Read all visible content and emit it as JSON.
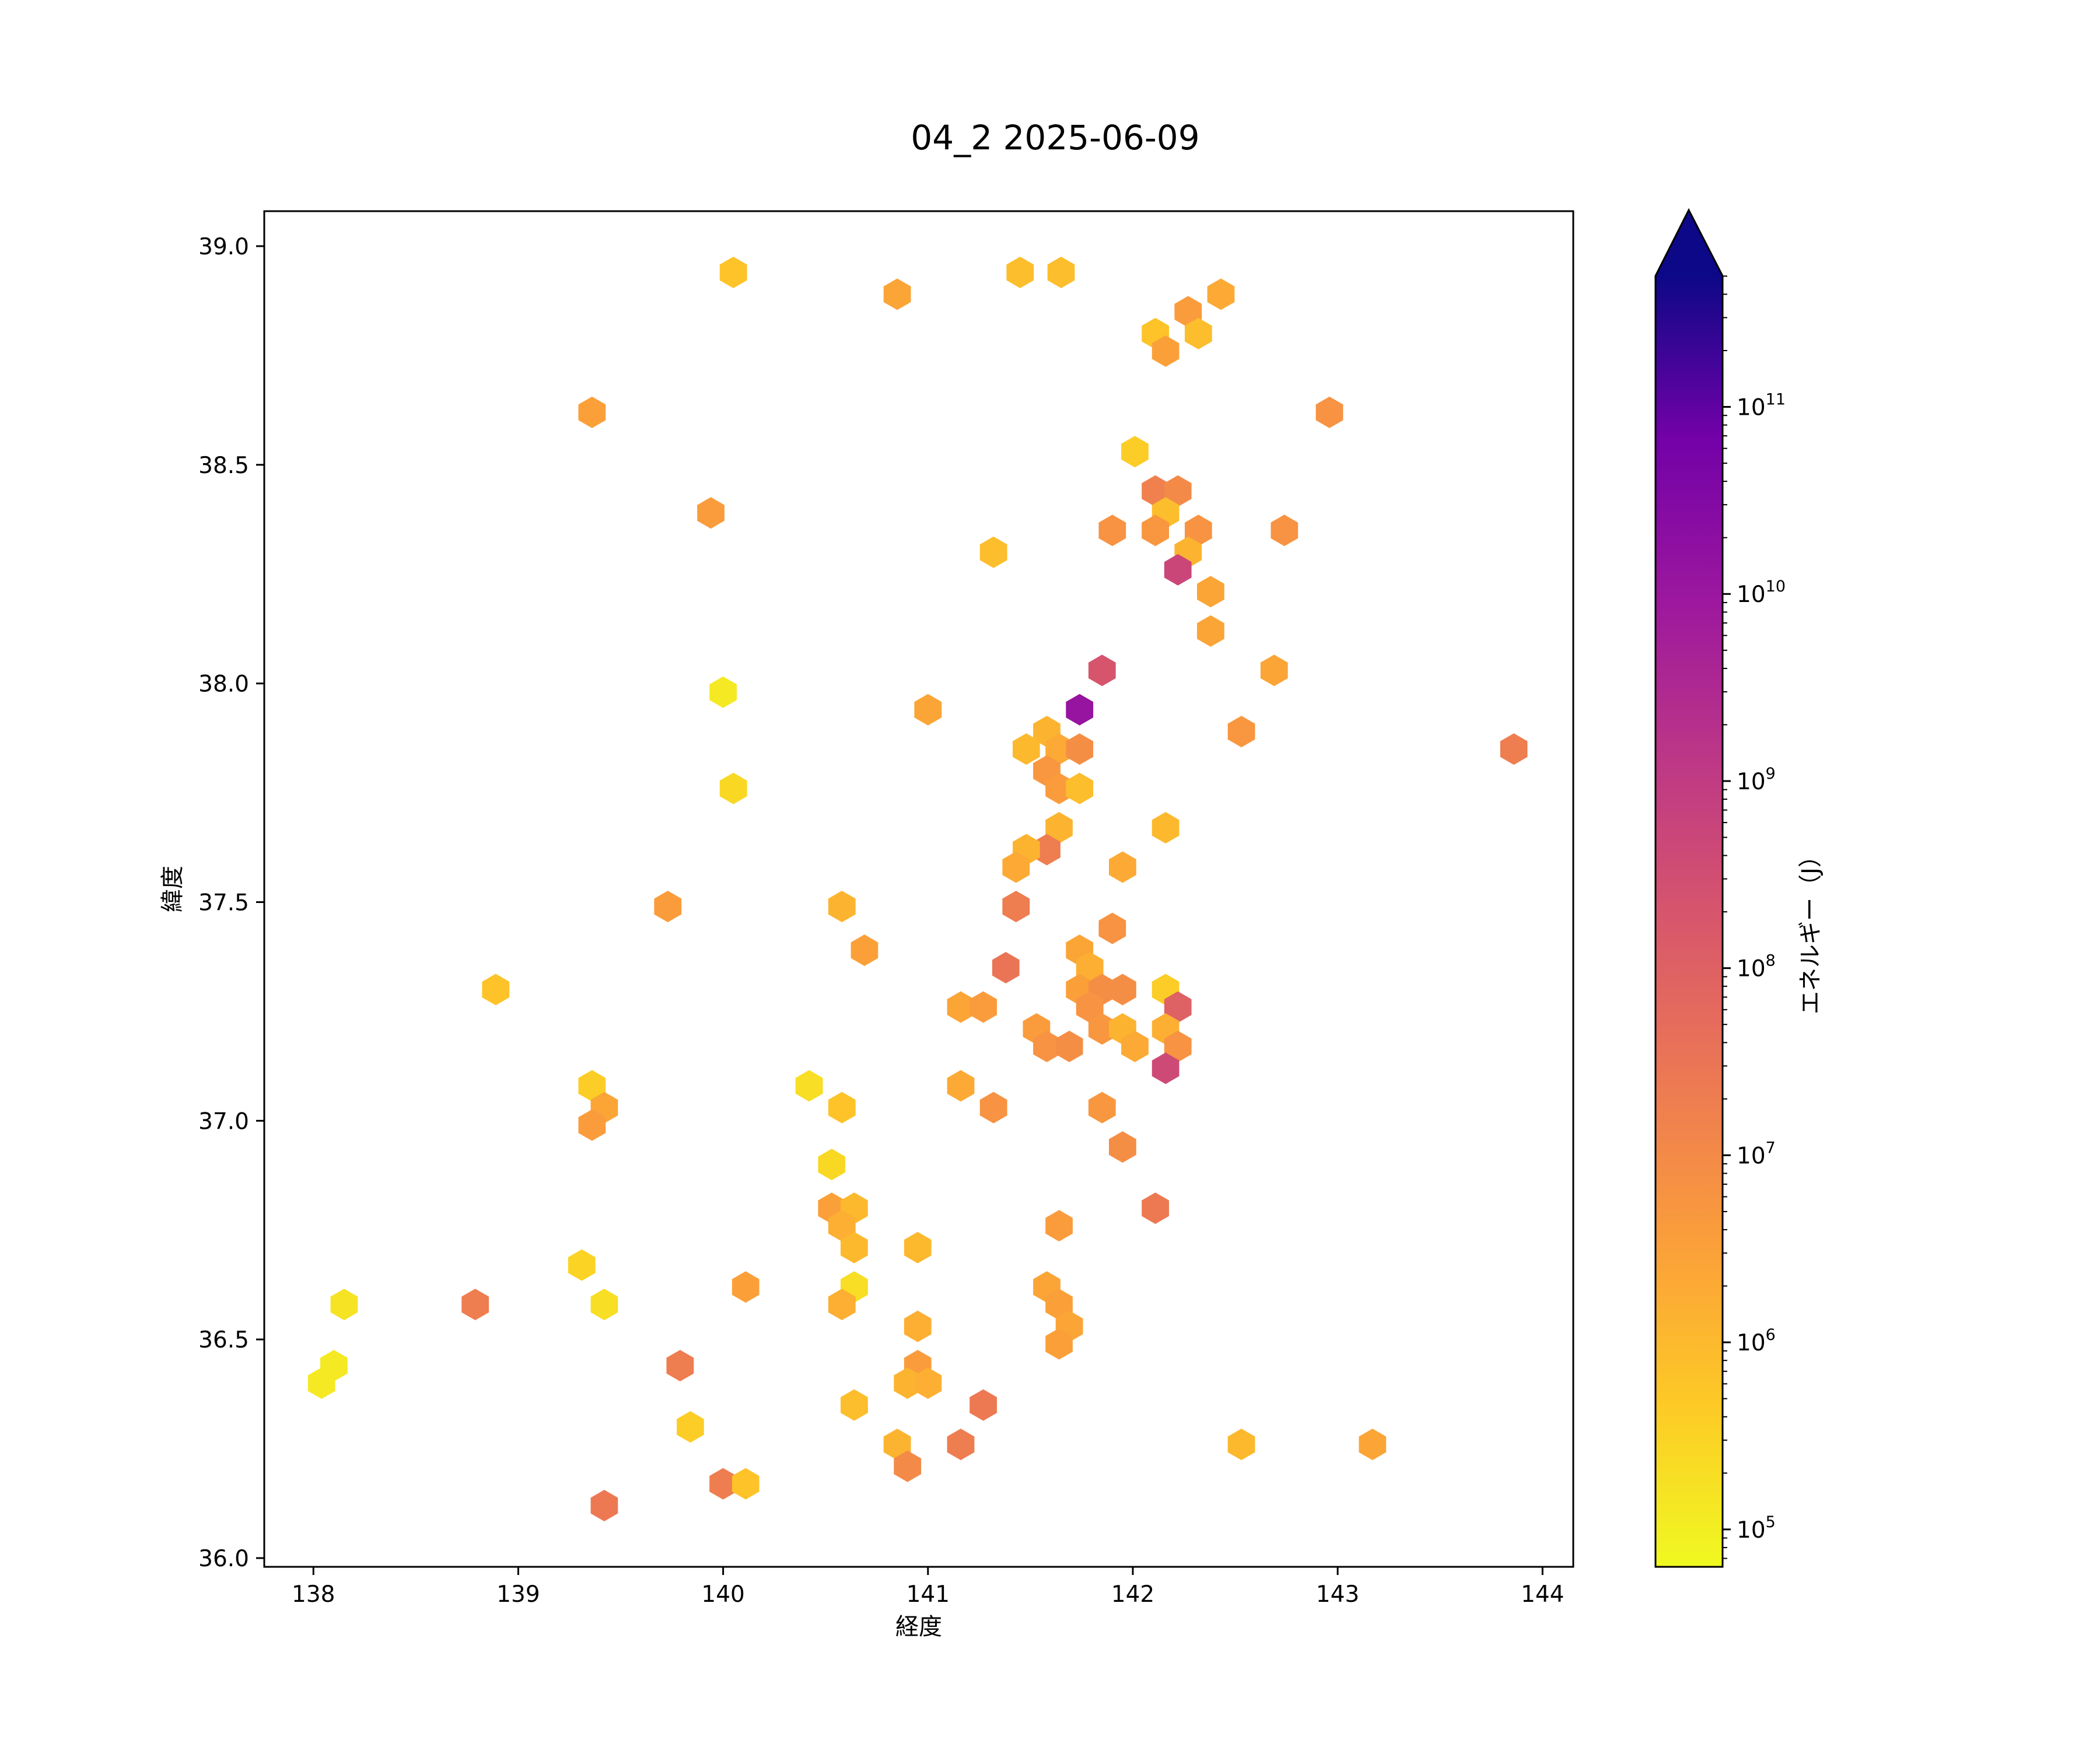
{
  "chart_data": {
    "type": "hexbin",
    "title": "04_2 2025-06-09",
    "xlabel": "経度",
    "ylabel": "緯度",
    "xlim": [
      137.76,
      144.15
    ],
    "ylim": [
      35.98,
      39.08
    ],
    "x_ticks": [
      "138",
      "139",
      "140",
      "141",
      "142",
      "143",
      "144"
    ],
    "y_ticks": [
      "36.0",
      "36.5",
      "37.0",
      "37.5",
      "38.0",
      "38.5",
      "39.0"
    ],
    "colorbar": {
      "label": "エネルギー（J）",
      "scale": "log",
      "colormap": "plasma_r",
      "range_log10": [
        4.8,
        11.7
      ],
      "extend": "max",
      "tick_exponents": [
        "5",
        "6",
        "7",
        "8",
        "9",
        "10",
        "11"
      ],
      "tick_base": "10"
    },
    "grid": false,
    "columns": [
      "longitude",
      "latitude",
      "log10_energy"
    ],
    "points": [
      [
        140.05,
        38.94,
        5.8
      ],
      [
        140.85,
        38.89,
        6.4
      ],
      [
        141.45,
        38.94,
        5.9
      ],
      [
        141.65,
        38.94,
        5.9
      ],
      [
        142.43,
        38.89,
        6.3
      ],
      [
        142.27,
        38.85,
        6.6
      ],
      [
        142.11,
        38.8,
        5.8
      ],
      [
        142.32,
        38.8,
        5.9
      ],
      [
        142.16,
        38.76,
        6.5
      ],
      [
        139.36,
        38.62,
        6.5
      ],
      [
        142.96,
        38.62,
        6.8
      ],
      [
        142.01,
        38.53,
        5.6
      ],
      [
        142.11,
        38.44,
        7.2
      ],
      [
        142.22,
        38.44,
        7.0
      ],
      [
        142.16,
        38.39,
        5.9
      ],
      [
        139.94,
        38.39,
        6.6
      ],
      [
        141.9,
        38.35,
        6.8
      ],
      [
        142.11,
        38.35,
        6.7
      ],
      [
        142.32,
        38.35,
        6.8
      ],
      [
        142.74,
        38.35,
        6.8
      ],
      [
        141.32,
        38.3,
        5.9
      ],
      [
        142.27,
        38.3,
        6.1
      ],
      [
        142.22,
        38.26,
        8.7
      ],
      [
        142.38,
        38.21,
        6.4
      ],
      [
        142.38,
        38.12,
        6.4
      ],
      [
        141.85,
        38.03,
        8.3
      ],
      [
        142.69,
        38.03,
        6.4
      ],
      [
        140.0,
        37.98,
        5.1
      ],
      [
        141.0,
        37.94,
        6.4
      ],
      [
        141.74,
        37.94,
        10.1
      ],
      [
        141.58,
        37.89,
        6.1
      ],
      [
        142.53,
        37.89,
        6.7
      ],
      [
        143.86,
        37.85,
        7.3
      ],
      [
        141.48,
        37.85,
        6.0
      ],
      [
        141.64,
        37.85,
        6.3
      ],
      [
        141.74,
        37.85,
        6.9
      ],
      [
        141.58,
        37.8,
        6.7
      ],
      [
        141.64,
        37.76,
        6.6
      ],
      [
        141.74,
        37.76,
        5.9
      ],
      [
        140.05,
        37.76,
        5.4
      ],
      [
        141.64,
        37.67,
        6.1
      ],
      [
        142.16,
        37.67,
        6.0
      ],
      [
        141.58,
        37.62,
        7.3
      ],
      [
        141.48,
        37.62,
        6.1
      ],
      [
        141.43,
        37.58,
        6.3
      ],
      [
        141.95,
        37.58,
        6.3
      ],
      [
        139.73,
        37.49,
        6.6
      ],
      [
        140.58,
        37.49,
        6.1
      ],
      [
        141.43,
        37.49,
        7.3
      ],
      [
        141.9,
        37.44,
        6.8
      ],
      [
        140.69,
        37.39,
        6.5
      ],
      [
        141.74,
        37.39,
        6.4
      ],
      [
        141.79,
        37.35,
        6.2
      ],
      [
        141.38,
        37.35,
        7.5
      ],
      [
        138.89,
        37.3,
        5.8
      ],
      [
        141.74,
        37.3,
        6.5
      ],
      [
        141.85,
        37.3,
        6.9
      ],
      [
        141.95,
        37.3,
        6.9
      ],
      [
        142.16,
        37.3,
        5.6
      ],
      [
        141.16,
        37.26,
        6.4
      ],
      [
        141.27,
        37.26,
        6.6
      ],
      [
        141.79,
        37.26,
        6.8
      ],
      [
        142.22,
        37.26,
        8.0
      ],
      [
        141.53,
        37.21,
        6.6
      ],
      [
        141.85,
        37.21,
        6.7
      ],
      [
        141.95,
        37.21,
        6.1
      ],
      [
        142.16,
        37.21,
        6.2
      ],
      [
        141.58,
        37.17,
        6.8
      ],
      [
        141.69,
        37.17,
        6.9
      ],
      [
        142.01,
        37.17,
        6.3
      ],
      [
        142.22,
        37.17,
        6.8
      ],
      [
        142.16,
        37.12,
        8.6
      ],
      [
        139.36,
        37.08,
        5.6
      ],
      [
        140.42,
        37.08,
        5.3
      ],
      [
        141.16,
        37.08,
        6.3
      ],
      [
        139.42,
        37.03,
        6.4
      ],
      [
        140.58,
        37.03,
        5.8
      ],
      [
        141.32,
        37.03,
        6.8
      ],
      [
        141.85,
        37.03,
        6.7
      ],
      [
        139.36,
        36.99,
        6.6
      ],
      [
        141.95,
        36.94,
        6.9
      ],
      [
        140.53,
        36.9,
        5.4
      ],
      [
        140.53,
        36.8,
        6.5
      ],
      [
        140.64,
        36.8,
        6.0
      ],
      [
        142.11,
        36.8,
        7.4
      ],
      [
        140.58,
        36.76,
        6.2
      ],
      [
        141.64,
        36.76,
        6.6
      ],
      [
        140.64,
        36.71,
        6.0
      ],
      [
        140.95,
        36.71,
        6.0
      ],
      [
        139.31,
        36.67,
        5.5
      ],
      [
        140.11,
        36.62,
        6.5
      ],
      [
        140.64,
        36.62,
        5.3
      ],
      [
        141.58,
        36.62,
        6.4
      ],
      [
        138.15,
        36.58,
        5.2
      ],
      [
        138.79,
        36.58,
        7.3
      ],
      [
        139.42,
        36.58,
        5.3
      ],
      [
        140.58,
        36.58,
        6.2
      ],
      [
        141.64,
        36.58,
        6.5
      ],
      [
        140.95,
        36.53,
        6.2
      ],
      [
        141.69,
        36.53,
        6.4
      ],
      [
        141.64,
        36.49,
        6.5
      ],
      [
        138.1,
        36.44,
        5.1
      ],
      [
        139.79,
        36.44,
        7.3
      ],
      [
        140.95,
        36.44,
        6.6
      ],
      [
        138.04,
        36.4,
        5.1
      ],
      [
        140.9,
        36.4,
        6.1
      ],
      [
        141.0,
        36.4,
        6.2
      ],
      [
        140.64,
        36.35,
        5.9
      ],
      [
        141.27,
        36.35,
        7.4
      ],
      [
        139.84,
        36.3,
        5.6
      ],
      [
        140.85,
        36.26,
        6.1
      ],
      [
        141.16,
        36.26,
        7.3
      ],
      [
        142.53,
        36.26,
        6.0
      ],
      [
        143.17,
        36.26,
        6.4
      ],
      [
        140.9,
        36.21,
        7.0
      ],
      [
        140.0,
        36.17,
        7.3
      ],
      [
        140.11,
        36.17,
        5.8
      ],
      [
        139.42,
        36.12,
        7.4
      ]
    ]
  }
}
